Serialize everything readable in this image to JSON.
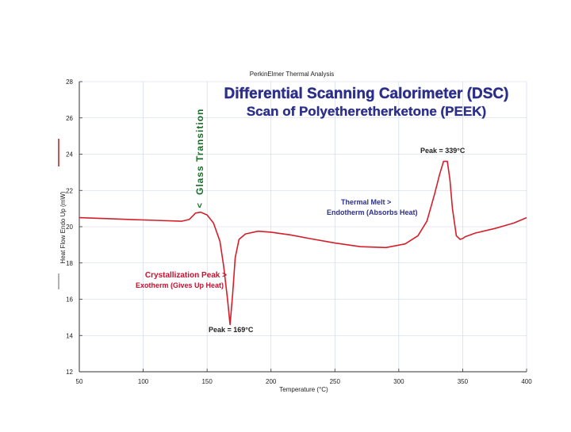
{
  "header": "PerkinElmer Thermal Analysis",
  "chart_data": {
    "type": "line",
    "title": "Differential Scanning Calorimeter (DSC)",
    "subtitle": "Scan of Polyetheretherketone (PEEK)",
    "xlabel": "Temperature (°C)",
    "ylabel": "Heat Flow Endo Up (mW)",
    "xlim": [
      50,
      400
    ],
    "ylim": [
      12,
      28
    ],
    "x_tick_labels": [
      "50",
      "100",
      "150",
      "200",
      "250",
      "300",
      "350",
      "400"
    ],
    "y_tick_labels": [
      "12",
      "14",
      "16",
      "18",
      "20",
      "22",
      "24",
      "26",
      "28"
    ],
    "grid": true,
    "line_color": "#d41f2a",
    "series": [
      {
        "x": [
          50,
          70,
          90,
          110,
          130,
          136,
          141,
          145,
          150,
          155,
          160,
          163,
          166,
          168,
          170,
          172,
          175,
          180,
          190,
          200,
          215,
          230,
          250,
          270,
          290,
          305,
          315,
          322,
          328,
          332,
          335,
          338,
          340,
          342,
          345,
          348,
          350,
          352,
          360,
          375,
          390,
          400
        ],
        "y": [
          20.5,
          20.45,
          20.4,
          20.35,
          20.3,
          20.4,
          20.75,
          20.8,
          20.65,
          20.2,
          19.2,
          17.8,
          16.0,
          14.6,
          16.3,
          18.3,
          19.3,
          19.6,
          19.75,
          19.7,
          19.55,
          19.35,
          19.1,
          18.9,
          18.85,
          19.05,
          19.5,
          20.3,
          21.8,
          22.9,
          23.6,
          23.6,
          22.6,
          21.0,
          19.5,
          19.3,
          19.35,
          19.45,
          19.65,
          19.9,
          20.2,
          20.5
        ]
      }
    ],
    "annotations": {
      "glass_transition": "Glass Transition",
      "glass_arrow": ">",
      "crystallization_title": "Crystallization Peak >",
      "crystallization_sub": "Exotherm (Gives Up Heat)",
      "crystallization_peak": "Peak = 169°C",
      "melt_title": "Thermal Melt  >",
      "melt_sub": "Endotherm (Absorbs Heat)",
      "melt_peak": "Peak = 339°C"
    }
  }
}
